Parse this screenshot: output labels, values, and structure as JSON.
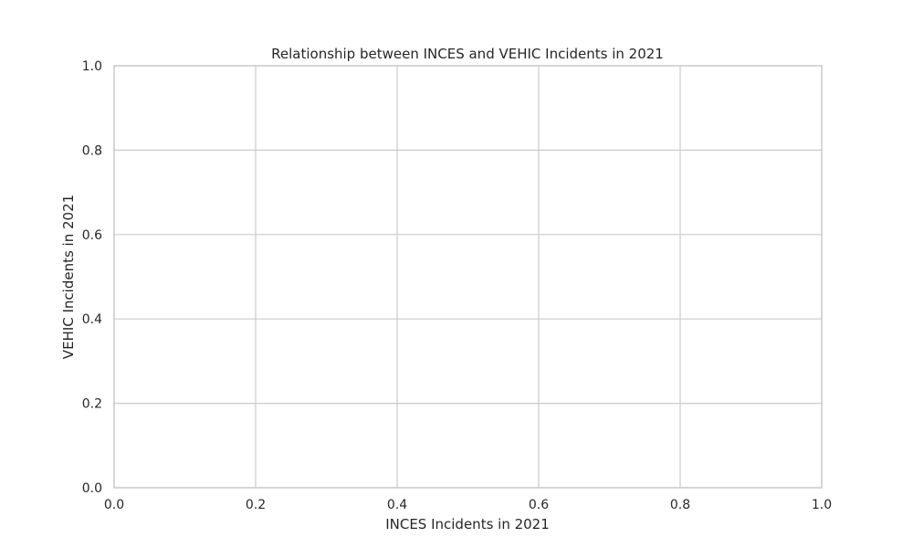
{
  "chart_data": {
    "type": "scatter",
    "title": "Relationship between INCES and VEHIC Incidents in 2021",
    "xlabel": "INCES Incidents in 2021",
    "ylabel": "VEHIC Incidents in 2021",
    "xlim": [
      0.0,
      1.0
    ],
    "ylim": [
      0.0,
      1.0
    ],
    "x_ticks": [
      0.0,
      0.2,
      0.4,
      0.6,
      0.8,
      1.0
    ],
    "y_ticks": [
      0.0,
      0.2,
      0.4,
      0.6,
      0.8,
      1.0
    ],
    "x_tick_labels": [
      "0.0",
      "0.2",
      "0.4",
      "0.6",
      "0.8",
      "1.0"
    ],
    "y_tick_labels": [
      "0.0",
      "0.2",
      "0.4",
      "0.6",
      "0.8",
      "1.0"
    ],
    "grid": true,
    "series": [
      {
        "name": "",
        "x": [],
        "y": []
      }
    ]
  },
  "colors": {
    "grid": "#cccccc",
    "text": "#262626",
    "background": "#ffffff"
  }
}
